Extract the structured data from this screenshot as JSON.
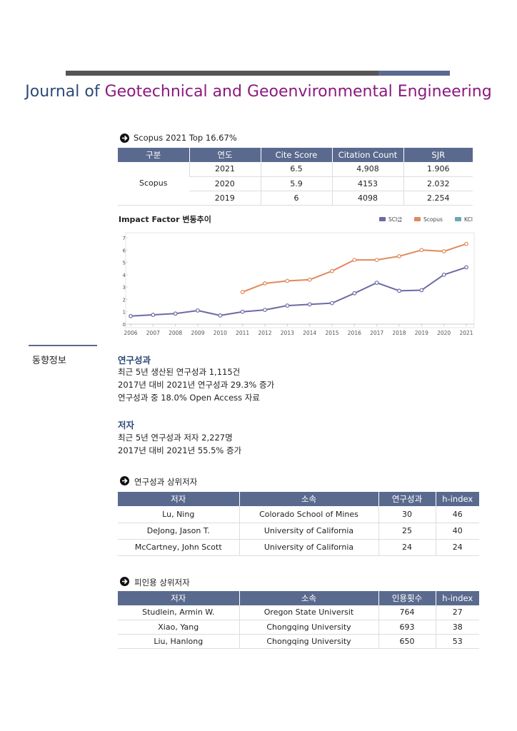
{
  "header": {
    "title_a": "Journal of",
    "title_b": "Geotechnical and Geoenvironmental Engineering"
  },
  "scopus": {
    "heading": "Scopus 2021 Top 16.67%",
    "columns": [
      "구분",
      "연도",
      "Cite Score",
      "Citation Count",
      "SJR"
    ],
    "group": "Scopus",
    "rows": [
      [
        "2021",
        "6.5",
        "4,908",
        "1.906"
      ],
      [
        "2020",
        "5.9",
        "4153",
        "2.032"
      ],
      [
        "2019",
        "6",
        "4098",
        "2.254"
      ]
    ]
  },
  "chart_data": {
    "type": "line",
    "title": "Impact Factor 변동추이",
    "x": [
      2006,
      2007,
      2008,
      2009,
      2010,
      2011,
      2012,
      2013,
      2014,
      2015,
      2016,
      2017,
      2018,
      2019,
      2020,
      2021
    ],
    "xlim": [
      2006,
      2021
    ],
    "ylim": [
      0,
      7
    ],
    "yticks": [
      0,
      1,
      2,
      3,
      4,
      5,
      6,
      7
    ],
    "grid": false,
    "series": [
      {
        "name": "SCI급",
        "color": "#6b6aa6",
        "values": [
          0.65,
          0.75,
          0.85,
          1.1,
          0.7,
          1.0,
          1.15,
          1.5,
          1.6,
          1.7,
          2.5,
          3.35,
          2.7,
          2.75,
          4.0,
          4.6
        ]
      },
      {
        "name": "Scopus",
        "color": "#e0895a",
        "values": [
          null,
          null,
          null,
          null,
          null,
          2.6,
          3.3,
          3.5,
          3.6,
          4.3,
          5.2,
          5.2,
          5.5,
          6.0,
          5.9,
          6.5
        ]
      },
      {
        "name": "KCI",
        "color": "#6aa8b2",
        "values": [
          null,
          null,
          null,
          null,
          null,
          null,
          null,
          null,
          null,
          null,
          null,
          null,
          null,
          null,
          null,
          null
        ]
      }
    ]
  },
  "trend": {
    "label": "동향정보",
    "research": {
      "heading": "연구성과",
      "lines": [
        "최근 5년 생산된 연구성과 1,115건",
        "2017년 대비 2021년 연구성과 29.3% 증가",
        "연구성과 중 18.0% Open Access 자료"
      ]
    },
    "authors": {
      "heading": "저자",
      "lines": [
        "최근 5년 연구성과 저자 2,227명",
        "2017년 대비 2021년 55.5% 증가"
      ]
    }
  },
  "top_authors": {
    "heading": "연구성과 상위저자",
    "columns": [
      "저자",
      "소속",
      "연구성과",
      "h-index"
    ],
    "rows": [
      [
        "Lu, Ning",
        "Colorado School of Mines",
        "30",
        "46"
      ],
      [
        "DeJong, Jason T.",
        "University of California",
        "25",
        "40"
      ],
      [
        "McCartney, John Scott",
        "University of California",
        "24",
        "24"
      ]
    ]
  },
  "cited_authors": {
    "heading": "피인용 상위저자",
    "columns": [
      "저자",
      "소속",
      "인용횟수",
      "h-index"
    ],
    "rows": [
      [
        "Studlein, Armin W.",
        "Oregon State Universit",
        "764",
        "27"
      ],
      [
        "Xiao, Yang",
        "Chongqing University",
        "693",
        "38"
      ],
      [
        "Liu, Hanlong",
        "Chongqing University",
        "650",
        "53"
      ]
    ]
  }
}
